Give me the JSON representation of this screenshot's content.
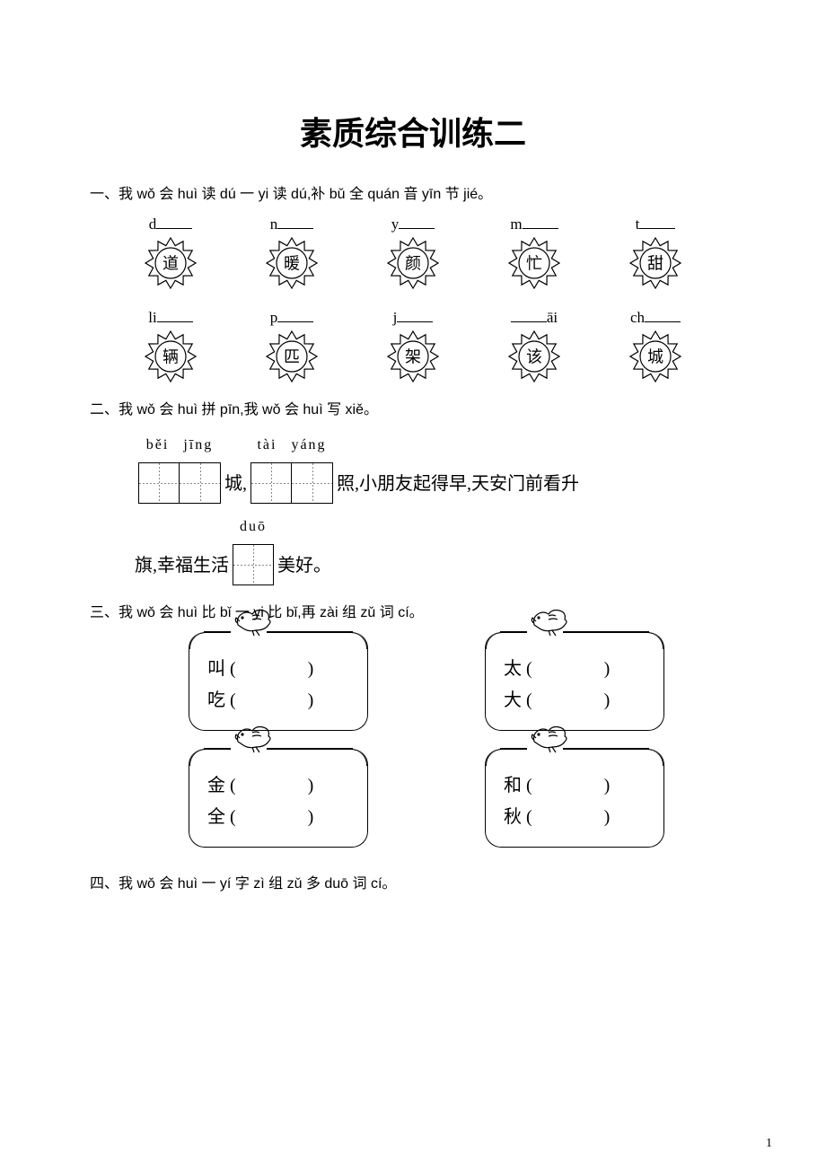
{
  "title": "素质综合训练二",
  "section1": {
    "heading": "一、我 wǒ 会 huì 读 dú 一 yi 读 dú,补 bǔ 全 quán 音 yīn 节 jié。",
    "row1": [
      {
        "pre": "d",
        "post": "",
        "char": "道"
      },
      {
        "pre": "n",
        "post": "",
        "char": "暖"
      },
      {
        "pre": "y",
        "post": "",
        "char": "颜"
      },
      {
        "pre": "m",
        "post": "",
        "char": "忙"
      },
      {
        "pre": "t",
        "post": "",
        "char": "甜"
      }
    ],
    "row2": [
      {
        "pre": "li",
        "post": "",
        "char": "辆"
      },
      {
        "pre": "p",
        "post": "",
        "char": "匹"
      },
      {
        "pre": "j",
        "post": "",
        "char": "架"
      },
      {
        "pre": "",
        "post": "āi",
        "char": "该"
      },
      {
        "pre": "ch",
        "post": "",
        "char": "城"
      }
    ]
  },
  "section2": {
    "heading": "二、我 wǒ 会 huì 拼 pīn,我 wǒ 会 huì 写 xiě。",
    "box1": {
      "pin": [
        "běi",
        "jīng"
      ],
      "count": 2
    },
    "text1": "城,",
    "box2": {
      "pin": [
        "tài",
        "yáng"
      ],
      "count": 2
    },
    "text2": "照,小朋友起得早,天安门前看升",
    "line2_prefix": "旗,幸福生活",
    "box3": {
      "pin": [
        "duō"
      ],
      "count": 1
    },
    "line2_suffix": "美好。"
  },
  "section3": {
    "heading": "三、我 wǒ 会 huì 比 bǐ 一 yi 比 bǐ,再 zài 组 zǔ 词 cí。",
    "cards": [
      [
        [
          "叫",
          "吃"
        ],
        [
          "太",
          "大"
        ]
      ],
      [
        [
          "金",
          "全"
        ],
        [
          "和",
          "秋"
        ]
      ]
    ]
  },
  "section4": {
    "heading": "四、我 wǒ 会 huì 一 yí 字 zì 组 zǔ 多 duō 词 cí。"
  },
  "pageNumber": "1",
  "colors": {
    "stroke": "#000000",
    "bg": "#ffffff"
  }
}
